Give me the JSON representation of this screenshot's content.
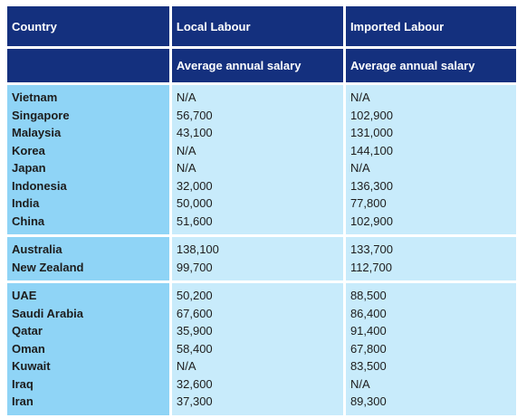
{
  "header": {
    "country": "Country",
    "local": "Local Labour",
    "imported": "Imported Labour",
    "local_sub": "Average annual salary",
    "imported_sub": "Average annual salary"
  },
  "groups": [
    {
      "rows": [
        {
          "country": "Vietnam",
          "local": "N/A",
          "imported": "N/A"
        },
        {
          "country": "Singapore",
          "local": "56,700",
          "imported": "102,900"
        },
        {
          "country": "Malaysia",
          "local": "43,100",
          "imported": "131,000"
        },
        {
          "country": "Korea",
          "local": "N/A",
          "imported": "144,100"
        },
        {
          "country": "Japan",
          "local": "N/A",
          "imported": "N/A"
        },
        {
          "country": "Indonesia",
          "local": "32,000",
          "imported": "136,300"
        },
        {
          "country": "India",
          "local": "50,000",
          "imported": "77,800"
        },
        {
          "country": "China",
          "local": "51,600",
          "imported": "102,900"
        }
      ]
    },
    {
      "rows": [
        {
          "country": "Australia",
          "local": "138,100",
          "imported": "133,700"
        },
        {
          "country": "New Zealand",
          "local": "99,700",
          "imported": "112,700"
        }
      ]
    },
    {
      "rows": [
        {
          "country": "UAE",
          "local": "50,200",
          "imported": "88,500"
        },
        {
          "country": "Saudi Arabia",
          "local": "67,600",
          "imported": "86,400"
        },
        {
          "country": "Qatar",
          "local": "35,900",
          "imported": "91,400"
        },
        {
          "country": "Oman",
          "local": "58,400",
          "imported": "67,800"
        },
        {
          "country": "Kuwait",
          "local": "N/A",
          "imported": "83,500"
        },
        {
          "country": "Iraq",
          "local": "32,600",
          "imported": "N/A"
        },
        {
          "country": "Iran",
          "local": "37,300",
          "imported": "89,300"
        }
      ]
    }
  ],
  "colors": {
    "header_bg": "#14307e",
    "country_bg": "#8fd4f6",
    "value_bg": "#c8ebfb"
  }
}
